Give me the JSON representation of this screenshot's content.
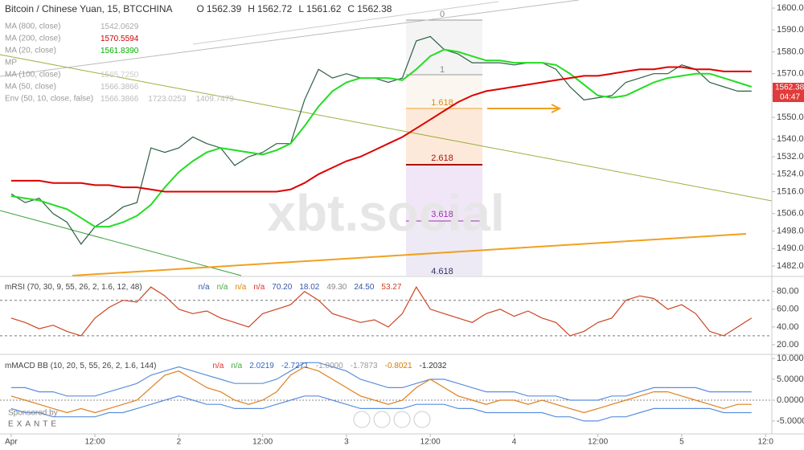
{
  "watermark": "xbt.social",
  "sponsor": "Sponsored by",
  "sponsor_brand": "EXANTE",
  "chart_data": [
    {
      "type": "line",
      "title": "Bitcoin / Chinese Yuan, 15, BTCCHINA",
      "ohlc": [
        {
          "label": "O",
          "value": "1562.39"
        },
        {
          "label": "H",
          "value": "1562.72"
        },
        {
          "label": "L",
          "value": "1561.62"
        },
        {
          "label": "C",
          "value": "1562.38"
        }
      ],
      "indicators": [
        {
          "label": "MA (800, close)",
          "values": [
            "1542.0629"
          ],
          "color": "#aaaaaa"
        },
        {
          "label": "MA (200, close)",
          "values": [
            "1570.5594"
          ],
          "color": "#cc0000"
        },
        {
          "label": "MA (20, close)",
          "values": [
            "1561.8390"
          ],
          "color": "#00b000"
        },
        {
          "label": "MP",
          "values": [],
          "color": "#aaaaaa"
        },
        {
          "label": "MA (100, close)",
          "values": [
            "1565.7250"
          ],
          "color": "#cccccc"
        },
        {
          "label": "MA (50, close)",
          "values": [
            "1566.3866"
          ],
          "color": "#bbbbbb"
        },
        {
          "label": "Env (50, 10, close, false)",
          "values": [
            "1566.3866",
            "1723.0253",
            "1409.7479"
          ],
          "color": "#bbbbbb"
        }
      ],
      "annotations": [
        "0",
        "1",
        "1.618",
        "2.618",
        "3.618",
        "4.618"
      ],
      "last_price": "1562.38",
      "countdown": "04:47",
      "x": [
        0,
        2,
        4,
        6,
        8,
        10,
        12,
        14,
        16,
        18,
        20,
        22,
        24,
        26,
        28,
        30,
        32,
        34,
        36,
        38,
        40,
        42,
        44,
        46,
        48,
        50,
        52,
        54,
        56,
        58,
        60,
        62,
        64,
        66,
        68,
        70,
        72,
        74,
        76,
        78,
        80,
        82,
        84,
        86,
        88,
        90,
        92,
        94,
        96,
        98,
        100,
        102,
        104,
        106
      ],
      "xlim": [
        -1.6,
        108.9
      ],
      "ylim": [
        1477.6,
        1603.7
      ],
      "yticks": [
        {
          "value": 1600,
          "label": "1600.00"
        },
        {
          "value": 1590,
          "label": "1590.00"
        },
        {
          "value": 1580,
          "label": "1580.00"
        },
        {
          "value": 1570,
          "label": "1570.00"
        },
        {
          "value": 1560,
          "label": "1560.00"
        },
        {
          "value": 1550,
          "label": "1550.00"
        },
        {
          "value": 1540,
          "label": "1540.00"
        },
        {
          "value": 1532,
          "label": "1532.00"
        },
        {
          "value": 1524,
          "label": "1524.00"
        },
        {
          "value": 1516,
          "label": "1516.00"
        },
        {
          "value": 1506,
          "label": "1506.00"
        },
        {
          "value": 1498,
          "label": "1498.00"
        },
        {
          "value": 1490,
          "label": "1490.00"
        },
        {
          "value": 1482,
          "label": "1482.00"
        }
      ],
      "series": [
        {
          "color": "#2f5f44",
          "values": [
            1515,
            1511,
            1513,
            1506,
            1502,
            1492,
            1500,
            1504,
            1509,
            1511,
            1536,
            1534,
            1536,
            1541,
            1538,
            1536,
            1528,
            1532,
            1534,
            1538,
            1538,
            1558,
            1572,
            1568,
            1570,
            1568,
            1568,
            1566,
            1568,
            1585,
            1587,
            1581,
            1579,
            1575,
            1575,
            1575,
            1574,
            1575,
            1575,
            1572,
            1564,
            1558,
            1559,
            1560,
            1566,
            1568,
            1570,
            1570,
            1574,
            1572,
            1566,
            1564,
            1562,
            1562
          ]
        },
        {
          "name": "MA (20, close)",
          "color": "#22dd22",
          "values": [
            1514,
            1513,
            1512,
            1510,
            1508,
            1504,
            1500,
            1500,
            1502,
            1505,
            1510,
            1518,
            1525,
            1530,
            1534,
            1536,
            1535,
            1534,
            1533,
            1535,
            1538,
            1546,
            1555,
            1562,
            1566,
            1568,
            1568,
            1568,
            1567,
            1572,
            1578,
            1581,
            1580,
            1578,
            1576,
            1576,
            1575,
            1575,
            1575,
            1574,
            1570,
            1565,
            1560,
            1559,
            1560,
            1563,
            1566,
            1568,
            1569,
            1570,
            1570,
            1568,
            1566,
            1564
          ]
        },
        {
          "name": "MA (200, close)",
          "color": "#dd0000",
          "values": [
            1521,
            1521,
            1521,
            1520,
            1520,
            1520,
            1519,
            1519,
            1518,
            1518,
            1517,
            1516,
            1516,
            1516,
            1516,
            1516,
            1516,
            1516,
            1516,
            1516,
            1517,
            1520,
            1524,
            1527,
            1530,
            1532,
            1535,
            1538,
            1541,
            1545,
            1549,
            1553,
            1557,
            1560,
            1562,
            1563,
            1564,
            1565,
            1566,
            1567,
            1568,
            1569,
            1569,
            1570,
            1571,
            1572,
            1572,
            1573,
            1573,
            1572,
            1572,
            1571,
            1571,
            1571
          ]
        }
      ]
    },
    {
      "type": "line",
      "title": "mRSI (70, 30, 9, 55, 26, 2, 1.6, 12, 48)",
      "header_values": [
        {
          "text": "n/a",
          "color": "#3355aa"
        },
        {
          "text": "n/a",
          "color": "#44aa44"
        },
        {
          "text": "n/a",
          "color": "#dd8800"
        },
        {
          "text": "n/a",
          "color": "#dd3333"
        },
        {
          "text": "70.20",
          "color": "#3355aa"
        },
        {
          "text": "18.02",
          "color": "#3355aa"
        },
        {
          "text": "49.30",
          "color": "#888888"
        },
        {
          "text": "24.50",
          "color": "#3355aa"
        },
        {
          "text": "53.27",
          "color": "#cc4422"
        }
      ],
      "x": [
        0,
        2,
        4,
        6,
        8,
        10,
        12,
        14,
        16,
        18,
        20,
        22,
        24,
        26,
        28,
        30,
        32,
        34,
        36,
        38,
        40,
        42,
        44,
        46,
        48,
        50,
        52,
        54,
        56,
        58,
        60,
        62,
        64,
        66,
        68,
        70,
        72,
        74,
        76,
        78,
        80,
        82,
        84,
        86,
        88,
        90,
        92,
        94,
        96,
        98,
        100,
        102,
        104,
        106
      ],
      "xlim": [
        -1.6,
        108.9
      ],
      "ylim": [
        10,
        96
      ],
      "yticks": [
        {
          "value": 80,
          "label": "80.00"
        },
        {
          "value": 60,
          "label": "60.00"
        },
        {
          "value": 40,
          "label": "40.00"
        },
        {
          "value": 20,
          "label": "20.00"
        }
      ],
      "levels": [
        70,
        30
      ],
      "series": [
        {
          "color": "#cc4422",
          "values": [
            50,
            45,
            38,
            42,
            35,
            30,
            50,
            62,
            70,
            68,
            85,
            75,
            60,
            55,
            58,
            50,
            45,
            40,
            55,
            60,
            65,
            80,
            70,
            55,
            50,
            45,
            48,
            40,
            55,
            85,
            60,
            55,
            50,
            45,
            55,
            60,
            52,
            58,
            50,
            45,
            30,
            35,
            45,
            50,
            70,
            75,
            72,
            60,
            65,
            55,
            35,
            30,
            40,
            50
          ]
        }
      ]
    },
    {
      "type": "line",
      "title": "mMACD BB (10, 20, 5, 55, 26, 2, 1.6, 144)",
      "header_values": [
        {
          "text": "n/a",
          "color": "#dd3333"
        },
        {
          "text": "n/a",
          "color": "#44aa44"
        },
        {
          "text": "2.0219",
          "color": "#3366cc"
        },
        {
          "text": "-2.7271",
          "color": "#3366cc"
        },
        {
          "text": "-1.0000",
          "color": "#999999"
        },
        {
          "text": "-1.7873",
          "color": "#999999"
        },
        {
          "text": "-0.8021",
          "color": "#dd7700"
        },
        {
          "text": "-1.2032",
          "color": "#333333"
        }
      ],
      "x": [
        0,
        2,
        4,
        6,
        8,
        10,
        12,
        14,
        16,
        18,
        20,
        22,
        24,
        26,
        28,
        30,
        32,
        34,
        36,
        38,
        40,
        42,
        44,
        46,
        48,
        50,
        52,
        54,
        56,
        58,
        60,
        62,
        64,
        66,
        68,
        70,
        72,
        74,
        76,
        78,
        80,
        82,
        84,
        86,
        88,
        90,
        92,
        94,
        96,
        98,
        100,
        102,
        104,
        106
      ],
      "xlim": [
        -1.6,
        108.9
      ],
      "ylim": [
        -8.1,
        10.6
      ],
      "yticks": [
        {
          "value": 10,
          "label": "10.0000"
        },
        {
          "value": 5,
          "label": "5.0000"
        },
        {
          "value": 0,
          "label": "0.0000"
        },
        {
          "value": -5,
          "label": "-5.0000"
        }
      ],
      "xticks": [
        {
          "value": 0,
          "label": "Apr"
        },
        {
          "value": 12,
          "label": "12:00"
        },
        {
          "value": 24,
          "label": "2"
        },
        {
          "value": 36,
          "label": "12:00"
        },
        {
          "value": 48,
          "label": "3"
        },
        {
          "value": 60,
          "label": "12:00"
        },
        {
          "value": 72,
          "label": "4"
        },
        {
          "value": 84,
          "label": "12:00"
        },
        {
          "value": 96,
          "label": "5"
        },
        {
          "value": 108,
          "label": "12:0"
        }
      ],
      "series": [
        {
          "color": "#5b8fdd",
          "values": [
            3,
            3,
            2,
            2,
            1,
            1,
            1,
            2,
            3,
            4,
            6,
            7,
            8,
            7,
            6,
            5,
            4,
            4,
            4,
            5,
            7,
            9,
            9,
            8,
            7,
            5,
            4,
            3,
            3,
            4,
            5,
            5,
            4,
            3,
            2,
            2,
            2,
            1,
            1,
            1,
            0,
            0,
            0,
            1,
            1,
            2,
            3,
            3,
            3,
            3,
            2,
            2,
            2,
            2
          ]
        },
        {
          "color": "#5b8fdd",
          "values": [
            -2,
            -3,
            -3,
            -4,
            -4,
            -4,
            -4,
            -3,
            -3,
            -2,
            -1,
            0,
            1,
            0,
            -1,
            -1,
            -2,
            -2,
            -2,
            -1,
            0,
            1,
            1,
            0,
            -1,
            -2,
            -2,
            -2,
            -2,
            -1,
            -1,
            -1,
            -2,
            -2,
            -3,
            -3,
            -3,
            -3,
            -3,
            -4,
            -4,
            -5,
            -5,
            -4,
            -4,
            -3,
            -2,
            -2,
            -2,
            -2,
            -2,
            -3,
            -3,
            -3
          ]
        },
        {
          "color": "#e08020",
          "values": [
            1,
            0,
            -1,
            -2,
            -3,
            -2,
            -3,
            -2,
            -1,
            0,
            3,
            6,
            7,
            5,
            3,
            2,
            0,
            -1,
            0,
            2,
            6,
            8,
            7,
            5,
            3,
            1,
            0,
            -1,
            0,
            3,
            5,
            3,
            1,
            0,
            -1,
            0,
            0,
            -1,
            0,
            -1,
            -2,
            -3,
            -2,
            -1,
            0,
            1,
            2,
            2,
            1,
            0,
            -1,
            -2,
            -1,
            -1
          ]
        }
      ]
    }
  ]
}
